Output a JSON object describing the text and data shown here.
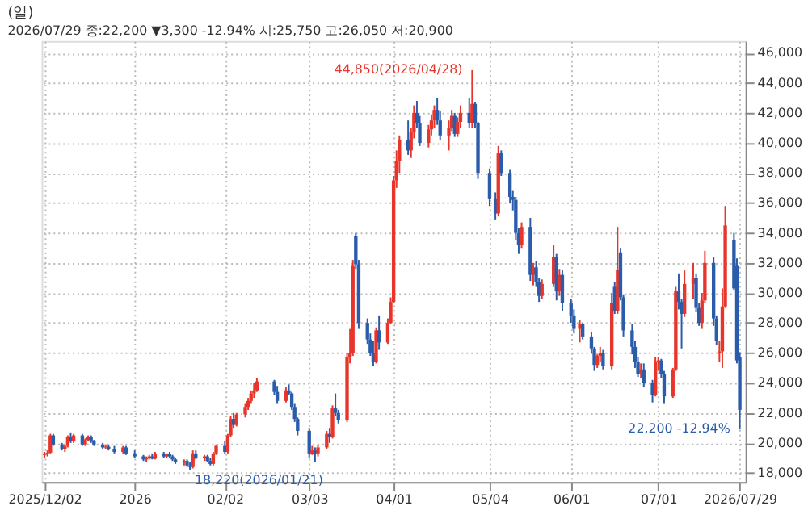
{
  "chart_data": {
    "type": "candlestick",
    "title": "(일)",
    "subtitle": "2026/07/29 종:22,200 ▼3,300 -12.94% 시:25,750 고:26,050 저:20,900",
    "x": [
      "2025-12-02",
      "2025-12-03",
      "2025-12-04",
      "2025-12-05",
      "2025-12-08",
      "2025-12-09",
      "2025-12-10",
      "2025-12-11",
      "2025-12-12",
      "2025-12-15",
      "2025-12-16",
      "2025-12-17",
      "2025-12-18",
      "2025-12-19",
      "2025-12-22",
      "2025-12-23",
      "2025-12-24",
      "2025-12-26",
      "2025-12-29",
      "2025-12-30",
      "2026-01-02",
      "2026-01-05",
      "2026-01-06",
      "2026-01-07",
      "2026-01-08",
      "2026-01-09",
      "2026-01-12",
      "2026-01-13",
      "2026-01-14",
      "2026-01-15",
      "2026-01-16",
      "2026-01-19",
      "2026-01-20",
      "2026-01-21",
      "2026-01-22",
      "2026-01-23",
      "2026-01-26",
      "2026-01-27",
      "2026-01-28",
      "2026-01-29",
      "2026-01-30",
      "2026-02-02",
      "2026-02-03",
      "2026-02-04",
      "2026-02-05",
      "2026-02-06",
      "2026-02-09",
      "2026-02-10",
      "2026-02-11",
      "2026-02-12",
      "2026-02-13",
      "2026-02-19",
      "2026-02-20",
      "2026-02-23",
      "2026-02-24",
      "2026-02-25",
      "2026-02-26",
      "2026-02-27",
      "2026-03-03",
      "2026-03-04",
      "2026-03-05",
      "2026-03-06",
      "2026-03-09",
      "2026-03-10",
      "2026-03-11",
      "2026-03-12",
      "2026-03-13",
      "2026-03-16",
      "2026-03-17",
      "2026-03-18",
      "2026-03-19",
      "2026-03-20",
      "2026-03-23",
      "2026-03-24",
      "2026-03-25",
      "2026-03-26",
      "2026-03-27",
      "2026-03-30",
      "2026-03-31",
      "2026-04-01",
      "2026-04-02",
      "2026-04-03",
      "2026-04-06",
      "2026-04-07",
      "2026-04-08",
      "2026-04-09",
      "2026-04-10",
      "2026-04-13",
      "2026-04-14",
      "2026-04-15",
      "2026-04-16",
      "2026-04-17",
      "2026-04-20",
      "2026-04-21",
      "2026-04-22",
      "2026-04-23",
      "2026-04-24",
      "2026-04-27",
      "2026-04-28",
      "2026-04-29",
      "2026-04-30",
      "2026-05-04",
      "2026-05-06",
      "2026-05-07",
      "2026-05-08",
      "2026-05-11",
      "2026-05-12",
      "2026-05-13",
      "2026-05-14",
      "2026-05-15",
      "2026-05-18",
      "2026-05-19",
      "2026-05-20",
      "2026-05-21",
      "2026-05-22",
      "2026-05-26",
      "2026-05-27",
      "2026-05-28",
      "2026-05-29",
      "2026-06-01",
      "2026-06-02",
      "2026-06-04",
      "2026-06-05",
      "2026-06-08",
      "2026-06-09",
      "2026-06-10",
      "2026-06-11",
      "2026-06-12",
      "2026-06-15",
      "2026-06-16",
      "2026-06-17",
      "2026-06-18",
      "2026-06-19",
      "2026-06-22",
      "2026-06-23",
      "2026-06-24",
      "2026-06-25",
      "2026-06-26",
      "2026-06-29",
      "2026-06-30",
      "2026-07-01",
      "2026-07-02",
      "2026-07-03",
      "2026-07-06",
      "2026-07-07",
      "2026-07-08",
      "2026-07-09",
      "2026-07-10",
      "2026-07-13",
      "2026-07-14",
      "2026-07-15",
      "2026-07-16",
      "2026-07-17",
      "2026-07-20",
      "2026-07-21",
      "2026-07-22",
      "2026-07-23",
      "2026-07-24",
      "2026-07-27",
      "2026-07-28",
      "2026-07-29"
    ],
    "ohlc": [
      [
        19200,
        19400,
        19000,
        19300
      ],
      [
        19300,
        19500,
        19100,
        19350
      ],
      [
        19350,
        20600,
        19300,
        20500
      ],
      [
        20500,
        20600,
        19800,
        19900
      ],
      [
        19900,
        20000,
        19500,
        19600
      ],
      [
        19600,
        19900,
        19400,
        19800
      ],
      [
        19800,
        20500,
        19700,
        20400
      ],
      [
        20400,
        20700,
        20000,
        20100
      ],
      [
        20100,
        20600,
        20000,
        20500
      ],
      [
        20500,
        20600,
        19800,
        19900
      ],
      [
        19900,
        20300,
        19800,
        20200
      ],
      [
        20200,
        20500,
        20100,
        20400
      ],
      [
        20400,
        20500,
        20000,
        20100
      ],
      [
        20100,
        20200,
        19800,
        19900
      ],
      [
        19900,
        20000,
        19600,
        19700
      ],
      [
        19700,
        19900,
        19600,
        19750
      ],
      [
        19750,
        19900,
        19500,
        19600
      ],
      [
        19600,
        19800,
        19300,
        19400
      ],
      [
        19400,
        19800,
        19300,
        19700
      ],
      [
        19700,
        19800,
        19200,
        19300
      ],
      [
        19300,
        19500,
        19000,
        19100
      ],
      [
        19100,
        19200,
        18800,
        18900
      ],
      [
        18900,
        19100,
        18700,
        19000
      ],
      [
        19000,
        19200,
        18900,
        19100
      ],
      [
        19100,
        19300,
        18900,
        18950
      ],
      [
        18950,
        19400,
        18900,
        19300
      ],
      [
        19300,
        19400,
        19000,
        19100
      ],
      [
        19100,
        19300,
        19000,
        19250
      ],
      [
        19250,
        19400,
        19000,
        19100
      ],
      [
        19100,
        19200,
        18800,
        18900
      ],
      [
        18900,
        19000,
        18600,
        18700
      ],
      [
        18700,
        18900,
        18500,
        18800
      ],
      [
        18800,
        18900,
        18400,
        18500
      ],
      [
        18500,
        18700,
        18220,
        18400
      ],
      [
        18400,
        19500,
        18300,
        19300
      ],
      [
        19300,
        19500,
        18900,
        19000
      ],
      [
        19000,
        19200,
        18800,
        19100
      ],
      [
        19100,
        19200,
        18700,
        18800
      ],
      [
        18800,
        19000,
        18500,
        18600
      ],
      [
        18600,
        19400,
        18500,
        19300
      ],
      [
        19300,
        19900,
        19200,
        19800
      ],
      [
        19800,
        20100,
        19300,
        19400
      ],
      [
        19400,
        20600,
        19300,
        20500
      ],
      [
        20500,
        21800,
        20400,
        21600
      ],
      [
        21600,
        22000,
        21000,
        21200
      ],
      [
        21200,
        22000,
        21100,
        21900
      ],
      [
        21900,
        22600,
        21700,
        22400
      ],
      [
        22400,
        23000,
        22200,
        22800
      ],
      [
        22800,
        23500,
        22600,
        23300
      ],
      [
        23300,
        24000,
        23000,
        23500
      ],
      [
        23500,
        24300,
        23400,
        24100
      ],
      [
        24100,
        24200,
        23200,
        23400
      ],
      [
        23400,
        23800,
        22600,
        22800
      ],
      [
        22800,
        23700,
        22700,
        23500
      ],
      [
        23500,
        23900,
        23200,
        23300
      ],
      [
        23300,
        23400,
        22200,
        22400
      ],
      [
        22400,
        22600,
        21400,
        21600
      ],
      [
        21600,
        21700,
        20500,
        20800
      ],
      [
        20800,
        21000,
        19000,
        19300
      ],
      [
        19300,
        19800,
        19200,
        19500
      ],
      [
        19500,
        19700,
        18700,
        19300
      ],
      [
        19300,
        19900,
        19100,
        19700
      ],
      [
        19700,
        20800,
        19600,
        20600
      ],
      [
        20600,
        21000,
        20000,
        20400
      ],
      [
        20400,
        22500,
        20300,
        22300
      ],
      [
        22300,
        23300,
        21800,
        22000
      ],
      [
        22000,
        22200,
        21300,
        21500
      ],
      [
        21500,
        26000,
        21400,
        25700
      ],
      [
        25700,
        27600,
        25300,
        26000
      ],
      [
        26000,
        32200,
        25800,
        31800
      ],
      [
        33800,
        34000,
        31600,
        31900
      ],
      [
        31900,
        32200,
        27600,
        28000
      ],
      [
        28000,
        28300,
        26600,
        26900
      ],
      [
        26900,
        27300,
        25800,
        26000
      ],
      [
        26000,
        26800,
        25100,
        25400
      ],
      [
        25400,
        27700,
        25300,
        27500
      ],
      [
        27500,
        28500,
        26200,
        26700
      ],
      [
        26700,
        28300,
        26600,
        28000
      ],
      [
        28000,
        29700,
        27900,
        29400
      ],
      [
        29400,
        37800,
        29300,
        37500
      ],
      [
        37500,
        39500,
        37000,
        38800
      ],
      [
        38800,
        40500,
        38000,
        40200
      ],
      [
        40200,
        41500,
        39200,
        39500
      ],
      [
        39500,
        41000,
        39000,
        40700
      ],
      [
        40700,
        42500,
        40300,
        42000
      ],
      [
        42000,
        42800,
        41000,
        41300
      ],
      [
        41300,
        41800,
        39800,
        40000
      ],
      [
        40000,
        41200,
        39700,
        40900
      ],
      [
        40900,
        41900,
        40500,
        41500
      ],
      [
        41500,
        42500,
        41000,
        42200
      ],
      [
        42200,
        43000,
        41200,
        41500
      ],
      [
        41500,
        42100,
        40200,
        40500
      ],
      [
        40500,
        41500,
        39500,
        41000
      ],
      [
        41000,
        42200,
        40800,
        41800
      ],
      [
        41800,
        42000,
        40400,
        40600
      ],
      [
        40600,
        41700,
        40400,
        41400
      ],
      [
        41400,
        42500,
        41000,
        42000
      ],
      [
        42000,
        43000,
        41000,
        41300
      ],
      [
        41300,
        44850,
        41000,
        42600
      ],
      [
        42600,
        42700,
        41000,
        41300
      ],
      [
        41300,
        41400,
        37600,
        38000
      ],
      [
        38000,
        38300,
        35800,
        36300
      ],
      [
        36300,
        36700,
        34900,
        35300
      ],
      [
        35300,
        39800,
        35100,
        39300
      ],
      [
        39300,
        39500,
        37800,
        38000
      ],
      [
        38000,
        38200,
        36000,
        36400
      ],
      [
        36400,
        36800,
        35500,
        36200
      ],
      [
        36200,
        36400,
        33500,
        34000
      ],
      [
        34000,
        34300,
        32600,
        33200
      ],
      [
        33200,
        34700,
        33000,
        34400
      ],
      [
        34400,
        35000,
        30800,
        31200
      ],
      [
        31200,
        32000,
        30500,
        31700
      ],
      [
        31700,
        32100,
        30400,
        30700
      ],
      [
        30700,
        31000,
        29400,
        29800
      ],
      [
        29800,
        30900,
        29600,
        30600
      ],
      [
        30600,
        33200,
        30400,
        32400
      ],
      [
        32400,
        32600,
        29500,
        30100
      ],
      [
        30100,
        31600,
        29800,
        31200
      ],
      [
        31200,
        31500,
        28800,
        29300
      ],
      [
        29300,
        29600,
        28000,
        28500
      ],
      [
        28500,
        28900,
        27300,
        27600
      ],
      [
        27600,
        28200,
        26700,
        27900
      ],
      [
        27900,
        28000,
        26900,
        27100
      ],
      [
        27100,
        27400,
        26000,
        26300
      ],
      [
        26300,
        26400,
        24800,
        25200
      ],
      [
        25200,
        25900,
        25000,
        25800
      ],
      [
        25800,
        26400,
        25400,
        26000
      ],
      [
        26000,
        26200,
        24900,
        25100
      ],
      [
        25100,
        30000,
        24900,
        29300
      ],
      [
        30400,
        30700,
        28600,
        28800
      ],
      [
        28800,
        34400,
        28600,
        31500
      ],
      [
        32700,
        33000,
        29500,
        29700
      ],
      [
        29700,
        29900,
        27100,
        27500
      ],
      [
        27500,
        27900,
        25900,
        26400
      ],
      [
        26400,
        26800,
        25000,
        25400
      ],
      [
        25400,
        25700,
        24400,
        24600
      ],
      [
        24600,
        25300,
        24300,
        24900
      ],
      [
        24900,
        25300,
        23700,
        24000
      ],
      [
        24000,
        24200,
        22700,
        23200
      ],
      [
        23200,
        25700,
        23100,
        25400
      ],
      [
        25400,
        25700,
        24800,
        25500
      ],
      [
        25500,
        25600,
        24300,
        24600
      ],
      [
        24600,
        24800,
        22600,
        23100
      ],
      [
        23100,
        25000,
        23000,
        24900
      ],
      [
        24900,
        30400,
        24800,
        30100
      ],
      [
        30100,
        31300,
        28900,
        29400
      ],
      [
        29400,
        29600,
        26300,
        28600
      ],
      [
        28600,
        31500,
        28400,
        30600
      ],
      [
        30600,
        32000,
        29600,
        31000
      ],
      [
        31000,
        31300,
        28700,
        29000
      ],
      [
        29000,
        29300,
        27800,
        28000
      ],
      [
        28000,
        30000,
        27600,
        29500
      ],
      [
        29500,
        32800,
        29300,
        32000
      ],
      [
        32000,
        32400,
        27800,
        28300
      ],
      [
        28300,
        28500,
        26500,
        26800
      ],
      [
        26000,
        26800,
        25400,
        26100
      ],
      [
        26100,
        30300,
        25000,
        29100
      ],
      [
        29100,
        35800,
        29000,
        34500
      ],
      [
        33500,
        34000,
        30200,
        30300
      ],
      [
        31800,
        32300,
        25300,
        25500
      ],
      [
        25750,
        26050,
        20900,
        22200
      ]
    ],
    "colors": [
      "#e8352b",
      "#e8352b",
      "#e8352b",
      "#2a5caa",
      "#2a5caa",
      "#e8352b",
      "#e8352b",
      "#2a5caa",
      "#e8352b",
      "#2a5caa",
      "#e8352b",
      "#e8352b",
      "#2a5caa",
      "#2a5caa",
      "#2a5caa",
      "#e8352b",
      "#2a5caa",
      "#2a5caa",
      "#e8352b",
      "#2a5caa",
      "#2a5caa",
      "#2a5caa",
      "#e8352b",
      "#e8352b",
      "#2a5caa",
      "#e8352b",
      "#2a5caa",
      "#e8352b",
      "#2a5caa",
      "#2a5caa",
      "#2a5caa",
      "#e8352b",
      "#2a5caa",
      "#2a5caa",
      "#e8352b",
      "#2a5caa",
      "#e8352b",
      "#2a5caa",
      "#2a5caa",
      "#e8352b",
      "#e8352b",
      "#2a5caa",
      "#e8352b",
      "#e8352b",
      "#2a5caa",
      "#e8352b",
      "#e8352b",
      "#e8352b",
      "#e8352b",
      "#e8352b",
      "#e8352b",
      "#2a5caa",
      "#2a5caa",
      "#e8352b",
      "#2a5caa",
      "#2a5caa",
      "#2a5caa",
      "#2a5caa",
      "#2a5caa",
      "#e8352b",
      "#2a5caa",
      "#e8352b",
      "#e8352b",
      "#2a5caa",
      "#e8352b",
      "#2a5caa",
      "#2a5caa",
      "#e8352b",
      "#e8352b",
      "#e8352b",
      "#2a5caa",
      "#2a5caa",
      "#2a5caa",
      "#2a5caa",
      "#2a5caa",
      "#e8352b",
      "#2a5caa",
      "#e8352b",
      "#e8352b",
      "#e8352b",
      "#e8352b",
      "#e8352b",
      "#2a5caa",
      "#e8352b",
      "#e8352b",
      "#2a5caa",
      "#2a5caa",
      "#e8352b",
      "#e8352b",
      "#e8352b",
      "#2a5caa",
      "#2a5caa",
      "#e8352b",
      "#e8352b",
      "#2a5caa",
      "#e8352b",
      "#e8352b",
      "#2a5caa",
      "#e8352b",
      "#2a5caa",
      "#2a5caa",
      "#2a5caa",
      "#2a5caa",
      "#e8352b",
      "#2a5caa",
      "#2a5caa",
      "#2a5caa",
      "#2a5caa",
      "#2a5caa",
      "#e8352b",
      "#2a5caa",
      "#e8352b",
      "#2a5caa",
      "#2a5caa",
      "#e8352b",
      "#e8352b",
      "#2a5caa",
      "#e8352b",
      "#2a5caa",
      "#2a5caa",
      "#2a5caa",
      "#e8352b",
      "#2a5caa",
      "#2a5caa",
      "#2a5caa",
      "#e8352b",
      "#e8352b",
      "#2a5caa",
      "#e8352b",
      "#2a5caa",
      "#e8352b",
      "#2a5caa",
      "#2a5caa",
      "#2a5caa",
      "#2a5caa",
      "#2a5caa",
      "#e8352b",
      "#2a5caa",
      "#2a5caa",
      "#e8352b",
      "#e8352b",
      "#2a5caa",
      "#2a5caa",
      "#e8352b",
      "#e8352b",
      "#2a5caa",
      "#2a5caa",
      "#e8352b",
      "#e8352b",
      "#2a5caa",
      "#2a5caa",
      "#e8352b",
      "#e8352b",
      "#2a5caa",
      "#2a5caa",
      "#e8352b",
      "#e8352b",
      "#e8352b",
      "#2a5caa",
      "#2a5caa",
      "#2a5caa"
    ],
    "xlim": [
      "2025-12-01",
      "2026-07-31"
    ],
    "xticks": [
      {
        "value": "2025-12-02",
        "label": "2025/12/02"
      },
      {
        "value": "2026-01-02",
        "label": "2026"
      },
      {
        "value": "2026-02-02",
        "label": "02/02"
      },
      {
        "value": "2026-03-03",
        "label": "03/03"
      },
      {
        "value": "2026-04-01",
        "label": "04/01"
      },
      {
        "value": "2026-05-04",
        "label": "05/04"
      },
      {
        "value": "2026-06-01",
        "label": "06/01"
      },
      {
        "value": "2026-07-01",
        "label": "07/01"
      },
      {
        "value": "2026-07-29",
        "label": "2026/07/29"
      }
    ],
    "ylim": [
      17400,
      46800
    ],
    "yticks": [
      {
        "value": 18000,
        "label": "18,000"
      },
      {
        "value": 20000,
        "label": "20,000"
      },
      {
        "value": 22000,
        "label": "22,000"
      },
      {
        "value": 24000,
        "label": "24,000"
      },
      {
        "value": 26000,
        "label": "26,000"
      },
      {
        "value": 28000,
        "label": "28,000"
      },
      {
        "value": 30000,
        "label": "30,000"
      },
      {
        "value": 32000,
        "label": "32,000"
      },
      {
        "value": 34000,
        "label": "34,000"
      },
      {
        "value": 36000,
        "label": "36,000"
      },
      {
        "value": 38000,
        "label": "38,000"
      },
      {
        "value": 40000,
        "label": "40,000"
      },
      {
        "value": 42000,
        "label": "42,000"
      },
      {
        "value": 44000,
        "label": "44,000"
      },
      {
        "value": 46000,
        "label": "46,000"
      }
    ],
    "grid": true,
    "annotations": [
      {
        "text": "44,850(2026/04/28)",
        "x": "2026-04-28",
        "y": 44850
      },
      {
        "text": "18,220(2026/01/21)",
        "x": "2026-01-21",
        "y": 18220
      },
      {
        "text": "22,200 -12.94%",
        "x": "2026-07-29",
        "y": 22200
      }
    ]
  }
}
